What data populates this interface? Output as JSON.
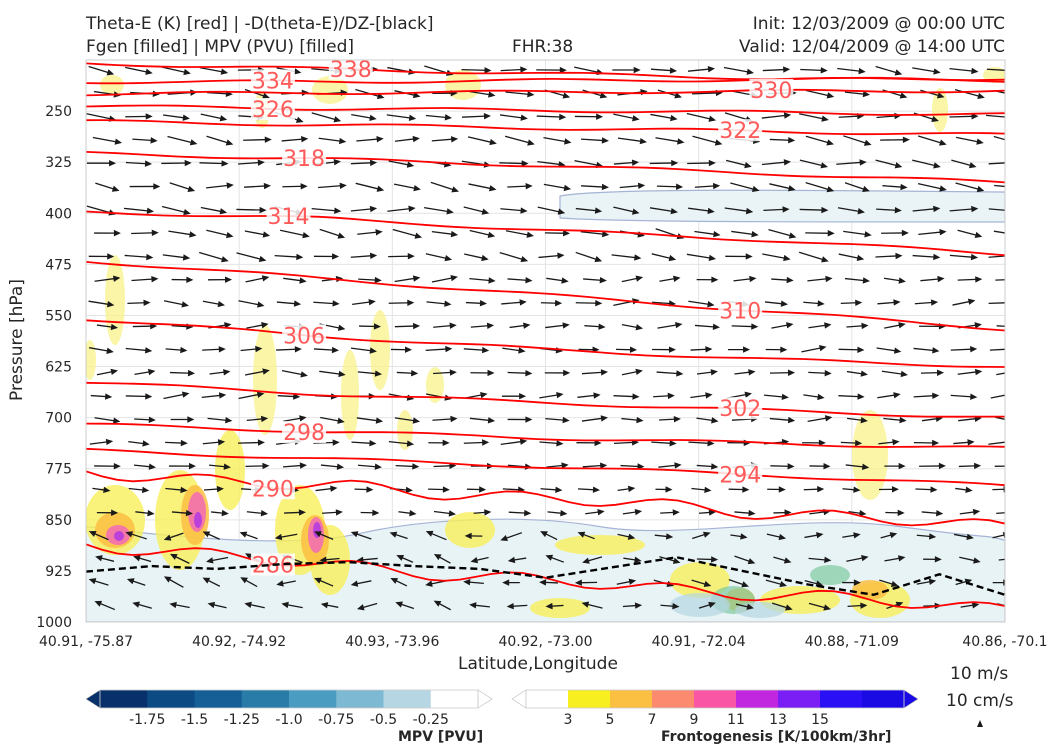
{
  "header": {
    "title_left_1": "Theta-E (K) [red] | -D(theta-E)/DZ-[black]",
    "title_left_2": "Fgen [filled] | MPV (PVU) [filled]",
    "title_center": "FHR:38",
    "title_right_1": "Init: 12/03/2009 @ 00:00 UTC",
    "title_right_2": "Valid: 12/04/2009 @ 14:00 UTC"
  },
  "chart_data": {
    "type": "cross-section",
    "xlabel": "Latitude,Longitude",
    "ylabel": "Pressure [hPa]",
    "x_ticks": [
      "40.91, -75.87",
      "40.92, -74.92",
      "40.93, -73.96",
      "40.92, -73.00",
      "40.91, -72.04",
      "40.88, -71.09",
      "40.86, -70.1"
    ],
    "y_ticks": [
      250,
      325,
      400,
      475,
      550,
      625,
      700,
      775,
      850,
      925,
      1000
    ],
    "ylim": [
      1000,
      175
    ],
    "y_axis_reversed": true,
    "theta_e_contours": [
      {
        "level": 338,
        "p": [
          180,
          188,
          195,
          202,
          205
        ]
      },
      {
        "level": 334,
        "p": [
          207,
          207,
          205,
          204,
          202
        ]
      },
      {
        "level": 330,
        "p": [
          225,
          223,
          222,
          221,
          220
        ]
      },
      {
        "level": 326,
        "p": [
          243,
          246,
          249,
          252,
          255
        ]
      },
      {
        "level": 322,
        "p": [
          265,
          270,
          275,
          280,
          285
        ]
      },
      {
        "level": 318,
        "p": [
          312,
          320,
          330,
          342,
          355
        ]
      },
      {
        "level": 314,
        "p": [
          398,
          407,
          425,
          440,
          460
        ]
      },
      {
        "level": 310,
        "p": [
          470,
          495,
          520,
          545,
          570
        ]
      },
      {
        "level": 306,
        "p": [
          555,
          580,
          600,
          615,
          625
        ]
      },
      {
        "level": 302,
        "p": [
          648,
          665,
          678,
          690,
          700
        ]
      },
      {
        "level": 298,
        "p": [
          710,
          720,
          730,
          738,
          745
        ]
      },
      {
        "level": 294,
        "p": [
          748,
          760,
          772,
          785,
          800
        ]
      },
      {
        "level": 290,
        "p": [
          780,
          800,
          818,
          840,
          860
        ]
      },
      {
        "level": 286,
        "p": [
          885,
          915,
          940,
          960,
          980
        ]
      }
    ],
    "dashed_contour_p": [
      926,
      918,
      922,
      915,
      912,
      918,
      922,
      935,
      920,
      905,
      925,
      945,
      960,
      930,
      960
    ],
    "wind_reference": [
      "10 m/s",
      "10 cm/s"
    ],
    "colorbars": [
      {
        "label": "MPV [PVU]",
        "ticks": [
          "-1.75",
          "-1.5",
          "-1.25",
          "-1.0",
          "-0.75",
          "-0.5",
          "-0.25"
        ],
        "colors": [
          "#08306b",
          "#0b4a82",
          "#155f96",
          "#2a7ca8",
          "#4b9cc1",
          "#7db9d3",
          "#b5d6e2",
          "#ffffff"
        ]
      },
      {
        "label": "Frontogenesis [K/100km/3hr]",
        "ticks": [
          "3",
          "5",
          "7",
          "9",
          "11",
          "13",
          "15"
        ],
        "colors": [
          "#ffffff",
          "#f7ef1f",
          "#fbbf42",
          "#fb8a6f",
          "#f956a6",
          "#c227e0",
          "#7a1ef5",
          "#2a10f4",
          "#1a0ae4"
        ]
      }
    ]
  }
}
